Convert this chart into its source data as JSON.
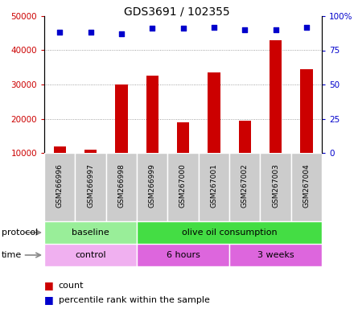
{
  "title": "GDS3691 / 102355",
  "samples": [
    "GSM266996",
    "GSM266997",
    "GSM266998",
    "GSM266999",
    "GSM267000",
    "GSM267001",
    "GSM267002",
    "GSM267003",
    "GSM267004"
  ],
  "counts": [
    12000,
    11000,
    30000,
    32500,
    19000,
    33500,
    19500,
    43000,
    34500
  ],
  "percentile_ranks": [
    88,
    88,
    87,
    91,
    91,
    92,
    90,
    90,
    92
  ],
  "bar_color": "#cc0000",
  "dot_color": "#0000cc",
  "ylim_left": [
    10000,
    50000
  ],
  "ylim_right": [
    0,
    100
  ],
  "yticks_left": [
    10000,
    20000,
    30000,
    40000,
    50000
  ],
  "yticks_right": [
    0,
    25,
    50,
    75,
    100
  ],
  "protocol_labels": [
    {
      "text": "baseline",
      "start": 0,
      "end": 3,
      "color": "#99ee99"
    },
    {
      "text": "olive oil consumption",
      "start": 3,
      "end": 9,
      "color": "#44dd44"
    }
  ],
  "time_labels": [
    {
      "text": "control",
      "start": 0,
      "end": 3,
      "color": "#f0b0f0"
    },
    {
      "text": "6 hours",
      "start": 3,
      "end": 6,
      "color": "#dd66dd"
    },
    {
      "text": "3 weeks",
      "start": 6,
      "end": 9,
      "color": "#dd66dd"
    }
  ],
  "legend_count_color": "#cc0000",
  "legend_prank_color": "#0000cc",
  "left_tick_color": "#cc0000",
  "right_tick_color": "#0000cc",
  "gray_box_color": "#cccccc",
  "bar_width": 0.4
}
